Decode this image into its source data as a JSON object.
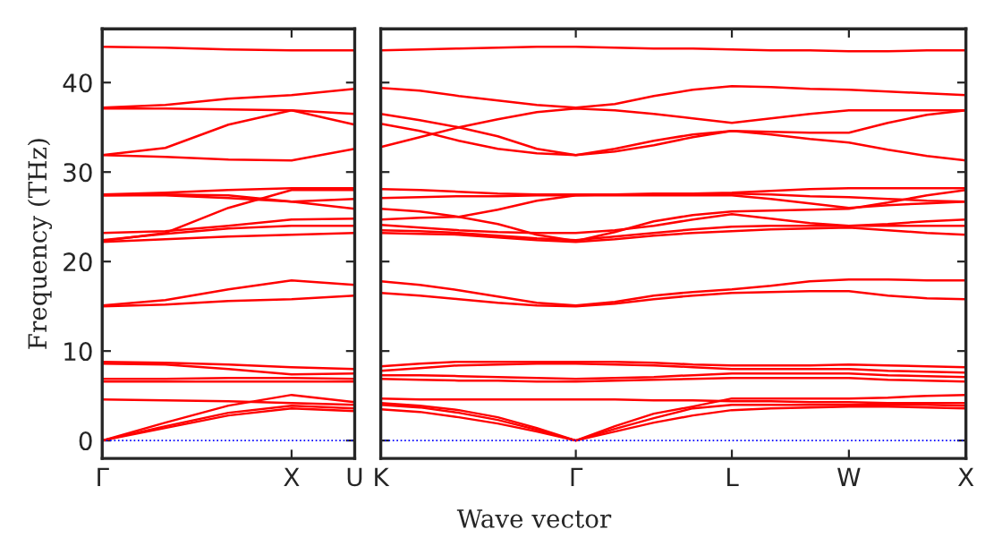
{
  "chart_data": [
    {
      "type": "line",
      "ylabel": "Frequency (THz)",
      "categories": [
        "Γ",
        null,
        null,
        "X",
        "U"
      ],
      "ylim": [
        -2,
        46
      ],
      "yticks": [
        0,
        10,
        20,
        30,
        40
      ],
      "grid": false,
      "ref_lines": [
        {
          "axis": "y",
          "value": 0,
          "color": "#0000ff",
          "line_style": "dotted"
        }
      ],
      "series": [
        {
          "color": "#ff0000",
          "values": [
            0,
            1.4,
            2.8,
            3.6,
            3.3
          ]
        },
        {
          "color": "#ff0000",
          "values": [
            0,
            1.6,
            3.1,
            3.9,
            3.6
          ]
        },
        {
          "color": "#ff0000",
          "values": [
            0,
            2.0,
            3.9,
            5.1,
            4.3
          ]
        },
        {
          "color": "#ff0000",
          "values": [
            4.6,
            4.5,
            4.4,
            4.2,
            4.0
          ]
        },
        {
          "color": "#ff0000",
          "values": [
            6.6,
            6.6,
            6.6,
            6.6,
            6.6
          ]
        },
        {
          "color": "#ff0000",
          "values": [
            6.9,
            6.9,
            7.0,
            7.0,
            6.9
          ]
        },
        {
          "color": "#ff0000",
          "values": [
            8.6,
            8.5,
            8.0,
            7.4,
            7.5
          ]
        },
        {
          "color": "#ff0000",
          "values": [
            8.8,
            8.7,
            8.5,
            8.2,
            8.0
          ]
        },
        {
          "color": "#ff0000",
          "values": [
            15.0,
            15.2,
            15.6,
            15.8,
            16.2
          ]
        },
        {
          "color": "#ff0000",
          "values": [
            15.1,
            15.7,
            16.9,
            17.9,
            17.4
          ]
        },
        {
          "color": "#ff0000",
          "values": [
            22.2,
            22.5,
            22.8,
            23.0,
            23.2
          ]
        },
        {
          "color": "#ff0000",
          "values": [
            22.4,
            23.1,
            23.7,
            24.0,
            24.0
          ]
        },
        {
          "color": "#ff0000",
          "values": [
            23.2,
            23.4,
            24.0,
            24.7,
            24.8
          ]
        },
        {
          "color": "#ff0000",
          "values": [
            22.3,
            23.2,
            26.0,
            28.0,
            28.0
          ]
        },
        {
          "color": "#ff0000",
          "values": [
            27.4,
            27.4,
            27.1,
            26.7,
            25.9
          ]
        },
        {
          "color": "#ff0000",
          "values": [
            27.4,
            27.5,
            27.4,
            26.7,
            27.0
          ]
        },
        {
          "color": "#ff0000",
          "values": [
            27.5,
            27.7,
            28.0,
            28.2,
            28.2
          ]
        },
        {
          "color": "#ff0000",
          "values": [
            31.9,
            31.7,
            31.4,
            31.3,
            32.6
          ]
        },
        {
          "color": "#ff0000",
          "values": [
            31.9,
            32.7,
            35.3,
            36.9,
            36.5
          ]
        },
        {
          "color": "#ff0000",
          "values": [
            37.1,
            37.1,
            37.0,
            36.9,
            35.3
          ]
        },
        {
          "color": "#ff0000",
          "values": [
            37.2,
            37.5,
            38.2,
            38.6,
            39.3
          ]
        },
        {
          "color": "#ff0000",
          "values": [
            44.0,
            43.9,
            43.7,
            43.6,
            43.6
          ]
        }
      ]
    },
    {
      "type": "line",
      "xlabel": "Wave vector",
      "categories": [
        "K",
        null,
        null,
        null,
        null,
        "Γ",
        null,
        null,
        null,
        "L",
        null,
        null,
        "W",
        null,
        null,
        "X"
      ],
      "ylim": [
        -2,
        46
      ],
      "yticks": [
        0,
        10,
        20,
        30,
        40
      ],
      "tick_labels": "x",
      "grid": false,
      "ref_lines": [
        {
          "axis": "y",
          "value": 0,
          "color": "#0000ff",
          "line_style": "dotted"
        }
      ],
      "series": [
        {
          "color": "#ff0000",
          "values": [
            3.5,
            3.2,
            2.6,
            1.9,
            1.0,
            0,
            1.0,
            2.0,
            2.8,
            3.4,
            3.6,
            3.7,
            3.8,
            3.8,
            3.7,
            3.6
          ]
        },
        {
          "color": "#ff0000",
          "values": [
            4.0,
            3.7,
            3.1,
            2.3,
            1.2,
            0,
            1.3,
            2.5,
            3.6,
            4.0,
            4.0,
            4.0,
            4.0,
            4.0,
            4.0,
            3.9
          ]
        },
        {
          "color": "#ff0000",
          "values": [
            4.2,
            3.9,
            3.4,
            2.6,
            1.4,
            0,
            1.6,
            3.0,
            3.8,
            4.7,
            4.7,
            4.7,
            4.7,
            4.8,
            5.0,
            5.1
          ]
        },
        {
          "color": "#ff0000",
          "values": [
            4.7,
            4.6,
            4.6,
            4.6,
            4.6,
            4.6,
            4.6,
            4.5,
            4.5,
            4.4,
            4.4,
            4.3,
            4.3,
            4.2,
            4.2,
            4.2
          ]
        },
        {
          "color": "#ff0000",
          "values": [
            6.9,
            6.8,
            6.7,
            6.7,
            6.6,
            6.6,
            6.7,
            6.8,
            6.9,
            7.0,
            7.0,
            7.0,
            7.0,
            6.8,
            6.7,
            6.6
          ]
        },
        {
          "color": "#ff0000",
          "values": [
            7.3,
            7.3,
            7.2,
            7.1,
            7.0,
            6.9,
            7.0,
            7.1,
            7.3,
            7.5,
            7.5,
            7.5,
            7.5,
            7.3,
            7.2,
            7.1
          ]
        },
        {
          "color": "#ff0000",
          "values": [
            7.8,
            8.1,
            8.4,
            8.5,
            8.6,
            8.6,
            8.5,
            8.4,
            8.2,
            8.0,
            8.0,
            8.0,
            8.0,
            7.8,
            7.7,
            7.6
          ]
        },
        {
          "color": "#ff0000",
          "values": [
            8.3,
            8.6,
            8.8,
            8.8,
            8.8,
            8.8,
            8.8,
            8.7,
            8.5,
            8.4,
            8.4,
            8.4,
            8.5,
            8.4,
            8.3,
            8.2
          ]
        },
        {
          "color": "#ff0000",
          "values": [
            16.5,
            16.2,
            15.8,
            15.4,
            15.1,
            15.0,
            15.3,
            15.8,
            16.2,
            16.5,
            16.6,
            16.7,
            16.7,
            16.2,
            15.9,
            15.8
          ]
        },
        {
          "color": "#ff0000",
          "values": [
            17.8,
            17.4,
            16.8,
            16.1,
            15.4,
            15.1,
            15.5,
            16.2,
            16.6,
            16.9,
            17.3,
            17.8,
            18.0,
            18.0,
            17.9,
            17.9
          ]
        },
        {
          "color": "#ff0000",
          "values": [
            23.2,
            23.1,
            23.0,
            22.7,
            22.4,
            22.2,
            22.5,
            22.9,
            23.2,
            23.4,
            23.6,
            23.7,
            23.8,
            23.5,
            23.2,
            23.0
          ]
        },
        {
          "color": "#ff0000",
          "values": [
            23.5,
            23.4,
            23.2,
            22.9,
            22.6,
            22.4,
            22.8,
            23.2,
            23.6,
            23.9,
            24.0,
            24.0,
            24.0,
            24.0,
            24.0,
            24.0
          ]
        },
        {
          "color": "#ff0000",
          "values": [
            24.1,
            23.8,
            23.5,
            23.3,
            23.2,
            23.2,
            23.5,
            24.0,
            24.7,
            25.3,
            24.8,
            24.3,
            24.0,
            24.2,
            24.5,
            24.7
          ]
        },
        {
          "color": "#ff0000",
          "values": [
            24.7,
            24.9,
            25.0,
            24.2,
            23.0,
            22.3,
            23.3,
            24.5,
            25.2,
            25.6,
            25.7,
            25.8,
            25.9,
            26.6,
            27.4,
            28.0
          ]
        },
        {
          "color": "#ff0000",
          "values": [
            25.9,
            25.6,
            25.0,
            25.8,
            26.8,
            27.4,
            27.4,
            27.4,
            27.4,
            27.4,
            27.0,
            26.5,
            26.0,
            26.3,
            26.5,
            26.7
          ]
        },
        {
          "color": "#ff0000",
          "values": [
            27.1,
            27.2,
            27.3,
            27.3,
            27.4,
            27.4,
            27.5,
            27.5,
            27.5,
            27.6,
            27.5,
            27.3,
            27.2,
            27.0,
            26.8,
            26.7
          ]
        },
        {
          "color": "#ff0000",
          "values": [
            28.1,
            28.0,
            27.8,
            27.6,
            27.5,
            27.5,
            27.5,
            27.6,
            27.6,
            27.7,
            27.9,
            28.1,
            28.2,
            28.2,
            28.2,
            28.2
          ]
        },
        {
          "color": "#ff0000",
          "values": [
            32.8,
            33.9,
            35.0,
            34.0,
            32.6,
            31.9,
            32.6,
            33.5,
            34.2,
            34.6,
            34.2,
            33.7,
            33.3,
            32.5,
            31.8,
            31.3
          ]
        },
        {
          "color": "#ff0000",
          "values": [
            35.4,
            34.6,
            33.5,
            32.6,
            32.1,
            31.9,
            32.3,
            33.0,
            33.9,
            34.6,
            34.5,
            34.4,
            34.4,
            35.5,
            36.4,
            36.9
          ]
        },
        {
          "color": "#ff0000",
          "values": [
            36.5,
            35.8,
            35.0,
            35.9,
            36.7,
            37.1,
            36.9,
            36.5,
            36.0,
            35.5,
            36.0,
            36.5,
            36.9,
            36.9,
            36.9,
            36.9
          ]
        },
        {
          "color": "#ff0000",
          "values": [
            39.4,
            39.1,
            38.5,
            38.0,
            37.5,
            37.2,
            37.6,
            38.5,
            39.2,
            39.6,
            39.5,
            39.3,
            39.2,
            39.0,
            38.8,
            38.6
          ]
        },
        {
          "color": "#ff0000",
          "values": [
            43.6,
            43.7,
            43.8,
            43.9,
            44.0,
            44.0,
            43.9,
            43.8,
            43.8,
            43.7,
            43.6,
            43.6,
            43.5,
            43.5,
            43.6,
            43.6
          ]
        }
      ]
    }
  ]
}
